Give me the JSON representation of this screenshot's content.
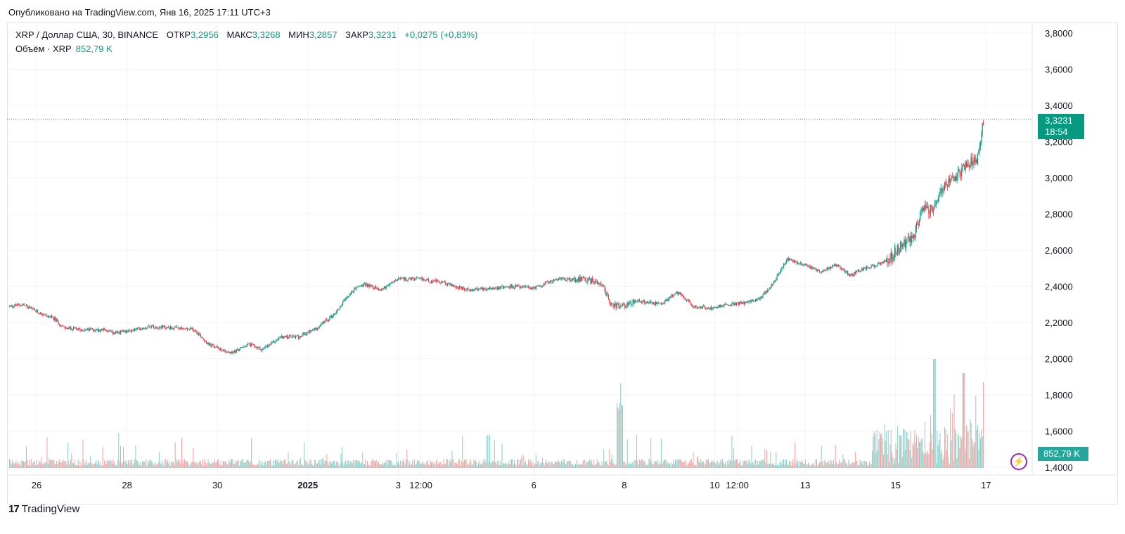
{
  "header": {
    "published": "Опубликовано на TradingView.com, Янв 16, 2025 17:11 UTC+3"
  },
  "legend": {
    "symbol": "XRP / Доллар США, 30, BINANCE",
    "open_label": "ОТКР",
    "open": "3,2956",
    "high_label": "МАКС",
    "high": "3,3268",
    "low_label": "МИН",
    "low": "3,2857",
    "close_label": "ЗАКР",
    "close": "3,3231",
    "change": "+0,0275 (+0,83%)",
    "volume_label": "Объём · XRP",
    "volume": "852,79 K"
  },
  "badges": {
    "last_price": "3,3231",
    "countdown": "18:54",
    "volume": "852,79 K"
  },
  "footer": {
    "brand": "TradingView",
    "logo_mark": "17"
  },
  "colors": {
    "up": "#089981",
    "down": "#f23645",
    "grid": "#f0f3fa",
    "volume_up": "#26a69a",
    "volume_down": "#ef5350"
  },
  "chart_data": {
    "type": "candlestick",
    "symbol": "XRPUSD",
    "interval": "30",
    "ylim": [
      1.38,
      3.86
    ],
    "y_ticks": [
      "3,8000",
      "3,6000",
      "3,4000",
      "3,2000",
      "3,0000",
      "2,8000",
      "2,6000",
      "2,4000",
      "2,2000",
      "2,0000",
      "1,8000",
      "1,6000",
      "1,4000"
    ],
    "y_tick_values": [
      3.8,
      3.6,
      3.4,
      3.2,
      3.0,
      2.8,
      2.6,
      2.4,
      2.2,
      2.0,
      1.8,
      1.6,
      1.4
    ],
    "x_ticks": [
      "26",
      "28",
      "30",
      "2025",
      "3",
      "12:00",
      "6",
      "8",
      "10",
      "12:00",
      "13",
      "15",
      "17"
    ],
    "x_tick_positions_days": [
      0,
      2,
      4,
      6,
      8,
      8.5,
      11,
      13,
      15,
      15.5,
      17,
      19,
      21
    ],
    "x_range_days": [
      -0.6,
      21
    ],
    "price_anchors": {
      "days": [
        -0.6,
        -0.3,
        0,
        0.4,
        0.6,
        1.0,
        1.5,
        1.7,
        2.0,
        2.5,
        3.0,
        3.5,
        3.8,
        4.0,
        4.3,
        4.7,
        5.0,
        5.4,
        5.8,
        6.2,
        6.6,
        6.9,
        7.1,
        7.3,
        7.6,
        8.0,
        8.5,
        9.0,
        9.5,
        10.0,
        10.5,
        11.0,
        11.5,
        12.0,
        12.5,
        12.7,
        12.9,
        13.3,
        13.8,
        14.2,
        14.5,
        14.9,
        15.3,
        15.7,
        16.0,
        16.3,
        16.6,
        17.0,
        17.3,
        17.7,
        18.0,
        18.3,
        18.6,
        18.9,
        19.1,
        19.4,
        19.6,
        19.8,
        20.0,
        20.3,
        20.6,
        20.8,
        20.95
      ],
      "close": [
        2.29,
        2.3,
        2.26,
        2.22,
        2.17,
        2.16,
        2.16,
        2.14,
        2.15,
        2.18,
        2.17,
        2.16,
        2.08,
        2.06,
        2.03,
        2.08,
        2.05,
        2.12,
        2.12,
        2.17,
        2.25,
        2.35,
        2.4,
        2.41,
        2.38,
        2.44,
        2.44,
        2.42,
        2.38,
        2.39,
        2.4,
        2.39,
        2.44,
        2.44,
        2.42,
        2.3,
        2.29,
        2.32,
        2.3,
        2.37,
        2.29,
        2.28,
        2.3,
        2.31,
        2.33,
        2.42,
        2.55,
        2.52,
        2.48,
        2.52,
        2.46,
        2.5,
        2.52,
        2.56,
        2.62,
        2.67,
        2.84,
        2.82,
        2.93,
        3.0,
        3.08,
        3.1,
        3.32
      ]
    },
    "volume_note": "volume histogram along bottom; spikes near 8 Jan and 15-16 Jan"
  }
}
